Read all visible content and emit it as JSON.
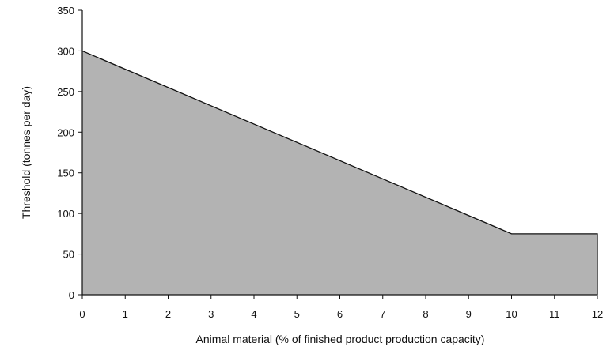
{
  "chart_data": {
    "type": "area",
    "title": "",
    "xlabel": "Animal material  (% of finished product production capacity)",
    "ylabel": "Threshold (tonnes per day)",
    "x": [
      0,
      10,
      12
    ],
    "y": [
      300,
      75,
      75
    ],
    "xlim": [
      0,
      12
    ],
    "ylim": [
      0,
      350
    ],
    "xticks": [
      0,
      1,
      2,
      3,
      4,
      5,
      6,
      7,
      8,
      9,
      10,
      11,
      12
    ],
    "yticks": [
      0,
      50,
      100,
      150,
      200,
      250,
      300,
      350
    ],
    "grid": false,
    "legend": "none",
    "fill_color": "#b3b3b3",
    "line_color": "#111111"
  }
}
